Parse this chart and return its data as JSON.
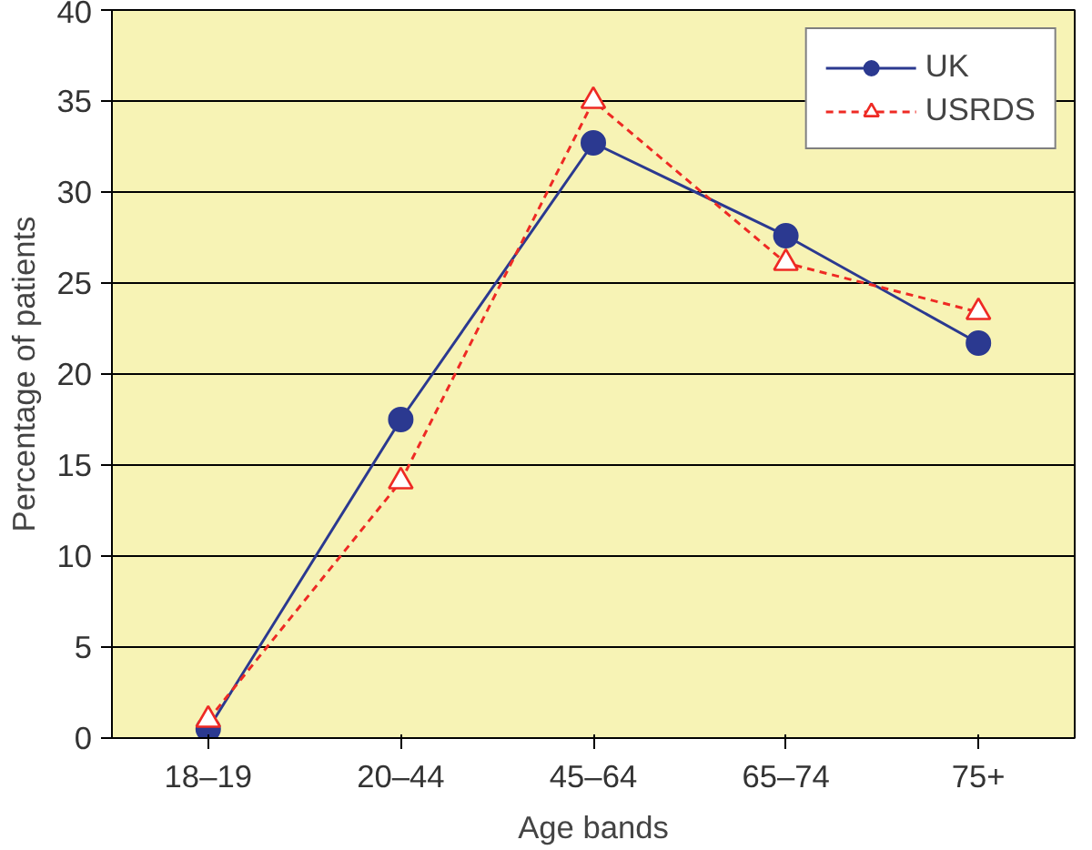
{
  "chart_data": {
    "type": "line",
    "xlabel": "Age bands",
    "ylabel": "Percentage of patients",
    "categories": [
      "18–19",
      "20–44",
      "45–64",
      "65–74",
      "75+"
    ],
    "series": [
      {
        "name": "UK",
        "color": "#2b3990",
        "values": [
          0.5,
          17.5,
          32.7,
          27.6,
          21.7
        ],
        "marker": "circle",
        "line_style": "solid"
      },
      {
        "name": "USRDS",
        "color": "#ee2a24",
        "values": [
          1.0,
          14.1,
          35.0,
          26.1,
          23.4
        ],
        "marker": "triangle",
        "line_style": "dashed"
      }
    ],
    "ylim": [
      0,
      40
    ],
    "yticks": [
      0,
      5,
      10,
      15,
      20,
      25,
      30,
      35,
      40
    ],
    "grid": "y",
    "legend": "top right"
  }
}
